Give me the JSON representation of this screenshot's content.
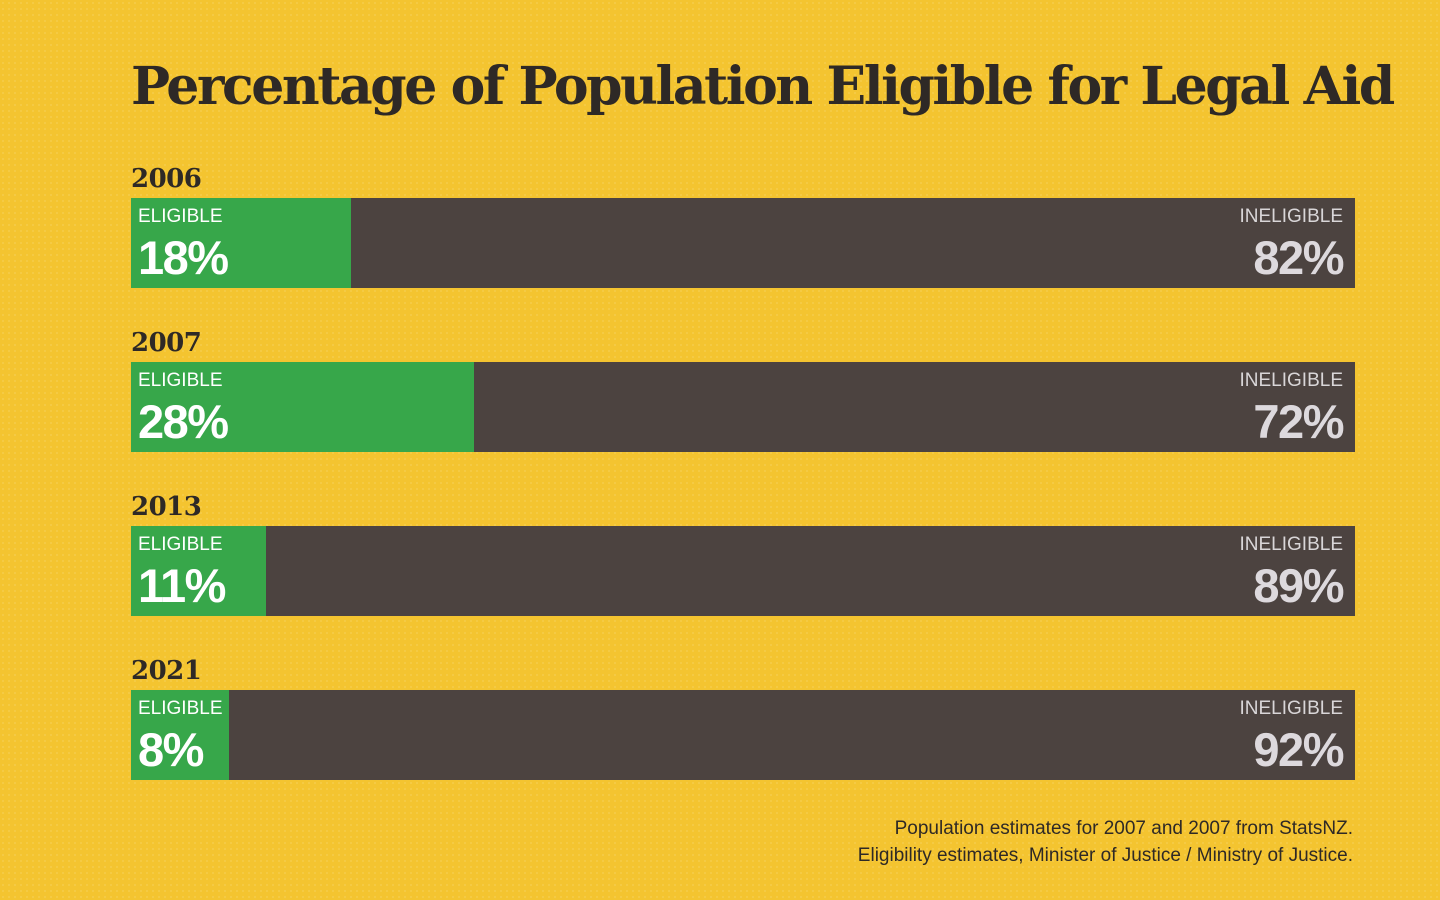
{
  "chart_data": {
    "type": "bar",
    "orientation": "horizontal-stacked",
    "title": "Percentage of Population Eligible for Legal Aid",
    "eligible_label": "ELIGIBLE",
    "ineligible_label": "INELIGIBLE",
    "categories": [
      "2006",
      "2007",
      "2013",
      "2021"
    ],
    "series": [
      {
        "name": "ELIGIBLE",
        "values": [
          18,
          28,
          11,
          8
        ],
        "color": "#37a74a"
      },
      {
        "name": "INELIGIBLE",
        "values": [
          82,
          72,
          89,
          92
        ],
        "color": "#4c4340"
      }
    ],
    "value_labels": {
      "eligible": [
        "18%",
        "28%",
        "11%",
        "8%"
      ],
      "ineligible": [
        "82%",
        "72%",
        "89%",
        "92%"
      ]
    },
    "xlim": [
      0,
      100
    ],
    "unit": "%"
  },
  "source": {
    "line1": "Population estimates for 2007 and 2007 from StatsNZ.",
    "line2": "Eligibility estimates, Minister of Justice / Ministry of Justice."
  },
  "colors": {
    "background": "#f4c430",
    "eligible": "#37a74a",
    "ineligible": "#4c4340",
    "text": "#2e2926"
  }
}
